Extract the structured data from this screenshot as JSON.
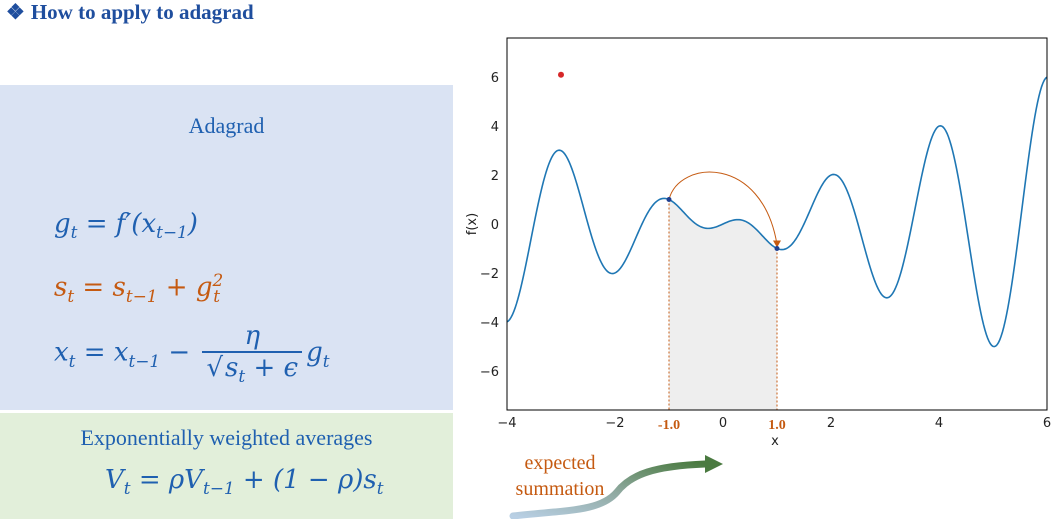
{
  "heading": {
    "bullet": "❖",
    "text": "How to apply to adagrad"
  },
  "adagrad": {
    "title": "Adagrad",
    "eq1": {
      "lhs": "g",
      "lhs_sub": "t",
      "rhs": "= f′(x",
      "rhs_sub": "t−1",
      "tail": ")"
    },
    "eq2": {
      "lhs": "s",
      "lhs_sub": "t",
      "rhs1": "= s",
      "rhs1_sub": "t−1",
      "plus": " + g",
      "g_sup": "2",
      "g_sub": "t"
    },
    "eq3": {
      "lhs": "x",
      "lhs_sub": "t",
      "rhs": "= x",
      "rhs_sub": "t−1",
      "minus": " −",
      "num": "η",
      "den": "√",
      "den_s": "s",
      "den_sub": "t",
      "den_tail": " + ϵ",
      "g": "g",
      "g_sub": "t"
    }
  },
  "ewa": {
    "title": "Exponentially weighted averages",
    "eq": {
      "lhs": "V",
      "lhs_sub": "t",
      "rhs": "= ρV",
      "rhs_sub": "t−1",
      "tail": " + (1 − ρ)s",
      "tail_sub": "t"
    }
  },
  "annotation": {
    "line1": "expected",
    "line2": "summation"
  },
  "chart_data": {
    "type": "line",
    "xlabel": "x",
    "ylabel": "f(x)",
    "xlim": [
      -4,
      6
    ],
    "ylim": [
      -7.6,
      7.6
    ],
    "xticks": [
      -4,
      -2,
      0,
      2,
      4,
      6
    ],
    "yticks": [
      -6,
      -4,
      -2,
      0,
      2,
      4,
      6
    ],
    "xtick_labels": [
      "−4",
      "−2",
      "0",
      "2",
      "4",
      "6"
    ],
    "ytick_labels": [
      "−6",
      "−4",
      "−2",
      "0",
      "2",
      "4",
      "6"
    ],
    "interval_labels": [
      "-1.0",
      "1.0"
    ],
    "interval": [
      -1.0,
      1.0
    ],
    "start_point": {
      "x": -3.0,
      "y": 6.1
    },
    "grid": false,
    "line_color": "#1f77b4",
    "interval_color": "#c55a11",
    "point_color": "#d62728"
  }
}
